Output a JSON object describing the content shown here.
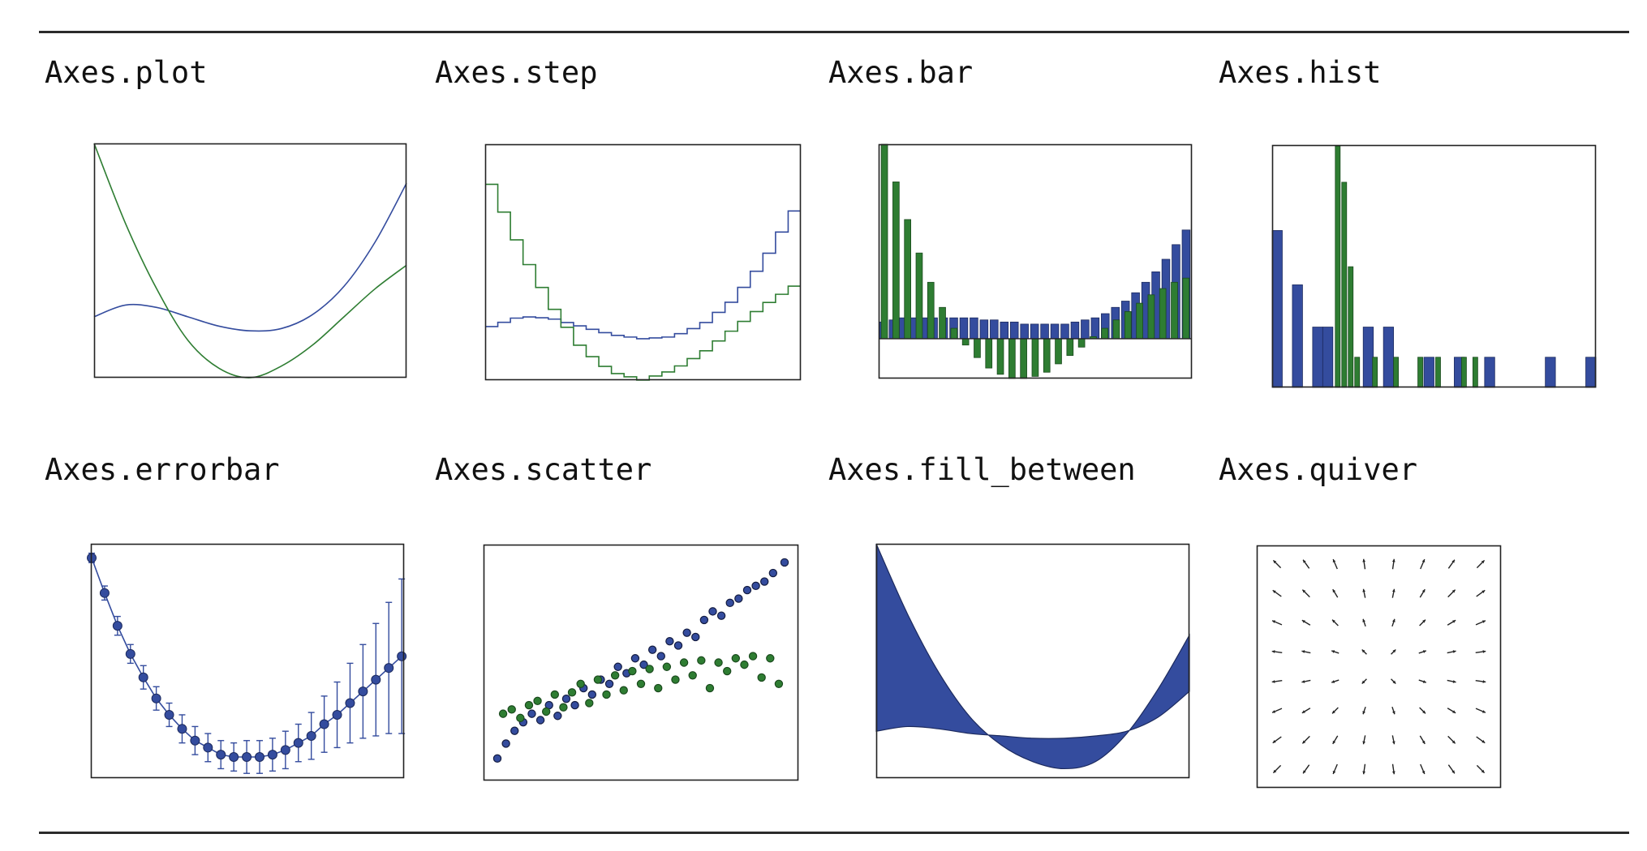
{
  "colors": {
    "blue": "#344c9e",
    "green": "#2e7d32",
    "frame": "#222222"
  },
  "panels": [
    {
      "title": "Axes.plot"
    },
    {
      "title": "Axes.step"
    },
    {
      "title": "Axes.bar"
    },
    {
      "title": "Axes.hist"
    },
    {
      "title": "Axes.errorbar"
    },
    {
      "title": "Axes.scatter"
    },
    {
      "title": "Axes.fill_between"
    },
    {
      "title": "Axes.quiver"
    }
  ],
  "chart_data": [
    {
      "type": "line",
      "title": "Axes.plot",
      "x": [
        -5,
        -4,
        -3,
        -2,
        -1,
        0,
        1,
        2,
        3,
        4,
        5
      ],
      "series": [
        {
          "values": [
            0.26,
            0.31,
            0.3,
            0.26,
            0.22,
            0.2,
            0.21,
            0.27,
            0.39,
            0.58,
            0.83
          ]
        },
        {
          "values": [
            1.0,
            0.66,
            0.38,
            0.16,
            0.04,
            0.0,
            0.05,
            0.14,
            0.26,
            0.38,
            0.48
          ]
        }
      ],
      "xlim": [
        -5,
        5
      ],
      "ylim": [
        0,
        1
      ]
    },
    {
      "type": "line",
      "title": "Axes.step",
      "x": [
        -5,
        -4,
        -3,
        -2,
        -1,
        0,
        1,
        2,
        3,
        4,
        5
      ],
      "series": [
        {
          "values": [
            0.26,
            0.31,
            0.3,
            0.26,
            0.22,
            0.2,
            0.21,
            0.27,
            0.39,
            0.58,
            0.83
          ]
        },
        {
          "values": [
            1.0,
            0.66,
            0.38,
            0.16,
            0.04,
            0.0,
            0.05,
            0.14,
            0.26,
            0.38,
            0.48
          ]
        }
      ],
      "xlim": [
        -5,
        5
      ],
      "ylim": [
        0,
        1
      ]
    },
    {
      "type": "bar",
      "title": "Axes.bar",
      "series": [
        {
          "values": [
            0.08,
            0.09,
            0.1,
            0.1,
            0.1,
            0.1,
            0.1,
            0.1,
            0.1,
            0.1,
            0.09,
            0.09,
            0.08,
            0.08,
            0.07,
            0.07,
            0.07,
            0.07,
            0.07,
            0.08,
            0.09,
            0.1,
            0.12,
            0.15,
            0.18,
            0.22,
            0.27,
            0.32,
            0.38,
            0.45,
            0.52
          ]
        },
        {
          "values": [
            0.93,
            0.75,
            0.57,
            0.41,
            0.27,
            0.15,
            0.05,
            -0.03,
            -0.09,
            -0.14,
            -0.17,
            -0.19,
            -0.19,
            -0.18,
            -0.16,
            -0.12,
            -0.08,
            -0.04,
            0.01,
            0.05,
            0.09,
            0.13,
            0.17,
            0.21,
            0.24,
            0.27,
            0.29
          ]
        }
      ],
      "ylim": [
        -0.19,
        0.93
      ]
    },
    {
      "type": "bar",
      "title": "Axes.hist",
      "series": [
        {
          "values": [
            26,
            0,
            17,
            0,
            10,
            10,
            0,
            0,
            0,
            10,
            0,
            10,
            0,
            0,
            0,
            5,
            0,
            0,
            5,
            0,
            0,
            5,
            0,
            0,
            0,
            0,
            0,
            5,
            0,
            0,
            0,
            5
          ]
        },
        {
          "values": [
            40,
            34,
            20,
            5,
            5,
            5,
            5,
            5,
            5,
            5
          ]
        }
      ]
    },
    {
      "type": "line",
      "title": "Axes.errorbar",
      "x": [
        0,
        1,
        2,
        3,
        4,
        5,
        6,
        7,
        8,
        9,
        10,
        11,
        12,
        13,
        14,
        15,
        16,
        17,
        18,
        19,
        20,
        21,
        22,
        23,
        24
      ],
      "series": [
        {
          "values": [
            0.94,
            0.79,
            0.65,
            0.53,
            0.43,
            0.34,
            0.27,
            0.21,
            0.16,
            0.13,
            0.1,
            0.09,
            0.09,
            0.09,
            0.1,
            0.12,
            0.15,
            0.18,
            0.23,
            0.27,
            0.32,
            0.37,
            0.42,
            0.47,
            0.52
          ]
        }
      ],
      "errors": [
        0.02,
        0.03,
        0.04,
        0.04,
        0.05,
        0.05,
        0.05,
        0.06,
        0.06,
        0.06,
        0.06,
        0.06,
        0.07,
        0.07,
        0.07,
        0.08,
        0.08,
        0.1,
        0.12,
        0.14,
        0.17,
        0.2,
        0.24,
        0.28,
        0.33
      ],
      "ylim": [
        0,
        1
      ]
    },
    {
      "type": "scatter",
      "title": "Axes.scatter",
      "series": [
        {
          "x": [
            0.0,
            0.03,
            0.06,
            0.09,
            0.12,
            0.15,
            0.18,
            0.21,
            0.24,
            0.27,
            0.3,
            0.33,
            0.36,
            0.39,
            0.42,
            0.45,
            0.48,
            0.51,
            0.54,
            0.57,
            0.6,
            0.63,
            0.66,
            0.69,
            0.72,
            0.75,
            0.78,
            0.81,
            0.84,
            0.87,
            0.9,
            0.93,
            0.96,
            1.0
          ],
          "y": [
            0.05,
            0.12,
            0.18,
            0.22,
            0.26,
            0.23,
            0.3,
            0.25,
            0.33,
            0.3,
            0.38,
            0.35,
            0.42,
            0.4,
            0.48,
            0.45,
            0.52,
            0.49,
            0.56,
            0.53,
            0.6,
            0.58,
            0.64,
            0.62,
            0.7,
            0.74,
            0.72,
            0.78,
            0.8,
            0.84,
            0.86,
            0.88,
            0.92,
            0.97
          ]
        },
        {
          "x": [
            0.02,
            0.05,
            0.08,
            0.11,
            0.14,
            0.17,
            0.2,
            0.23,
            0.26,
            0.29,
            0.32,
            0.35,
            0.38,
            0.41,
            0.44,
            0.47,
            0.5,
            0.53,
            0.56,
            0.59,
            0.62,
            0.65,
            0.68,
            0.71,
            0.74,
            0.77,
            0.8,
            0.83,
            0.86,
            0.89,
            0.92,
            0.95,
            0.98
          ],
          "y": [
            0.26,
            0.28,
            0.24,
            0.3,
            0.32,
            0.27,
            0.35,
            0.29,
            0.36,
            0.4,
            0.31,
            0.42,
            0.35,
            0.44,
            0.37,
            0.46,
            0.4,
            0.47,
            0.38,
            0.48,
            0.42,
            0.5,
            0.44,
            0.51,
            0.38,
            0.5,
            0.46,
            0.52,
            0.49,
            0.53,
            0.43,
            0.52,
            0.4
          ]
        }
      ],
      "xlim": [
        0,
        1
      ],
      "ylim": [
        0,
        1
      ]
    },
    {
      "type": "area",
      "title": "Axes.fill_between",
      "x": [
        -5,
        -4,
        -3,
        -2,
        -1,
        0,
        1,
        2,
        3,
        4,
        5
      ],
      "series": [
        {
          "values": [
            0.2,
            0.22,
            0.21,
            0.19,
            0.18,
            0.17,
            0.17,
            0.18,
            0.2,
            0.26,
            0.37
          ]
        },
        {
          "values": [
            1.0,
            0.7,
            0.45,
            0.26,
            0.14,
            0.07,
            0.04,
            0.07,
            0.19,
            0.38,
            0.61
          ]
        }
      ],
      "xlim": [
        -5,
        5
      ],
      "ylim": [
        0,
        1
      ]
    },
    {
      "type": "quiver",
      "title": "Axes.quiver",
      "grid": [
        8,
        8
      ]
    }
  ]
}
